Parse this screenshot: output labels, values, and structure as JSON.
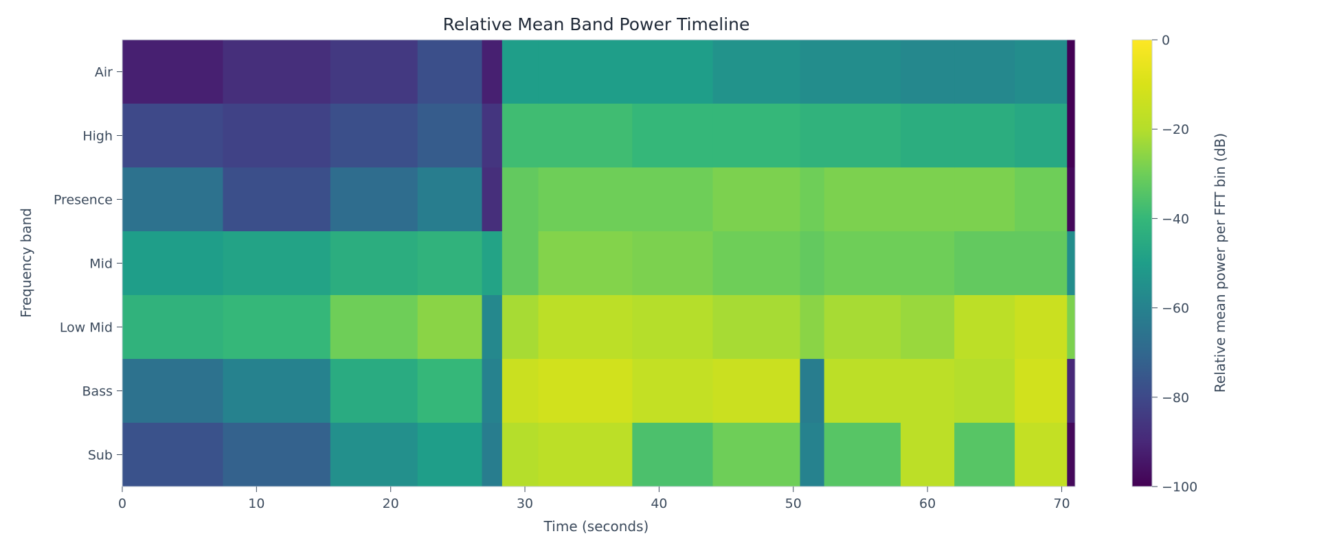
{
  "chart_data": {
    "type": "heatmap",
    "title": "Relative Mean Band Power Timeline",
    "xlabel": "Time (seconds)",
    "ylabel": "Frequency band",
    "colorbar_label": "Relative mean power per FFT bin (dB)",
    "colormap": "viridis",
    "xlim": [
      0,
      71
    ],
    "x_ticks": [
      0,
      10,
      20,
      30,
      40,
      50,
      60,
      70
    ],
    "x_tick_labels": [
      "0",
      "10",
      "20",
      "30",
      "40",
      "50",
      "60",
      "70"
    ],
    "bands": [
      "Air",
      "High",
      "Presence",
      "Mid",
      "Low Mid",
      "Bass",
      "Sub"
    ],
    "zlim": [
      -100,
      0
    ],
    "colorbar_ticks": [
      0,
      -20,
      -40,
      -60,
      -80,
      -100
    ],
    "colorbar_tick_labels": [
      "0",
      "−20",
      "−40",
      "−60",
      "−80",
      "−100"
    ],
    "segments": [
      {
        "t_start": 0.0,
        "t_end": 7.5,
        "values": [
          -92,
          -80,
          -66,
          -50,
          -42,
          -66,
          -77
        ]
      },
      {
        "t_start": 7.5,
        "t_end": 15.5,
        "values": [
          -88,
          -82,
          -78,
          -48,
          -40,
          -60,
          -72
        ]
      },
      {
        "t_start": 15.5,
        "t_end": 22.0,
        "values": [
          -85,
          -78,
          -68,
          -44,
          -30,
          -45,
          -55
        ]
      },
      {
        "t_start": 22.0,
        "t_end": 26.8,
        "values": [
          -78,
          -74,
          -62,
          -42,
          -26,
          -40,
          -50
        ]
      },
      {
        "t_start": 26.8,
        "t_end": 28.3,
        "values": [
          -92,
          -86,
          -88,
          -48,
          -58,
          -60,
          -62
        ]
      },
      {
        "t_start": 28.3,
        "t_end": 31.0,
        "values": [
          -50,
          -38,
          -32,
          -32,
          -22,
          -14,
          -20
        ]
      },
      {
        "t_start": 31.0,
        "t_end": 38.0,
        "values": [
          -50,
          -38,
          -30,
          -27,
          -18,
          -12,
          -18
        ]
      },
      {
        "t_start": 38.0,
        "t_end": 44.0,
        "values": [
          -50,
          -40,
          -30,
          -28,
          -20,
          -16,
          -36
        ]
      },
      {
        "t_start": 44.0,
        "t_end": 50.5,
        "values": [
          -54,
          -40,
          -28,
          -30,
          -22,
          -14,
          -30
        ]
      },
      {
        "t_start": 50.5,
        "t_end": 52.3,
        "values": [
          -56,
          -42,
          -30,
          -32,
          -26,
          -62,
          -60
        ]
      },
      {
        "t_start": 52.3,
        "t_end": 58.0,
        "values": [
          -56,
          -42,
          -28,
          -30,
          -22,
          -18,
          -34
        ]
      },
      {
        "t_start": 58.0,
        "t_end": 62.0,
        "values": [
          -58,
          -44,
          -28,
          -30,
          -24,
          -18,
          -18
        ]
      },
      {
        "t_start": 62.0,
        "t_end": 66.5,
        "values": [
          -58,
          -44,
          -28,
          -32,
          -18,
          -20,
          -34
        ]
      },
      {
        "t_start": 66.5,
        "t_end": 70.4,
        "values": [
          -56,
          -46,
          -30,
          -32,
          -14,
          -12,
          -16
        ]
      },
      {
        "t_start": 70.4,
        "t_end": 71.0,
        "values": [
          -100,
          -100,
          -98,
          -56,
          -28,
          -90,
          -98
        ]
      }
    ]
  }
}
